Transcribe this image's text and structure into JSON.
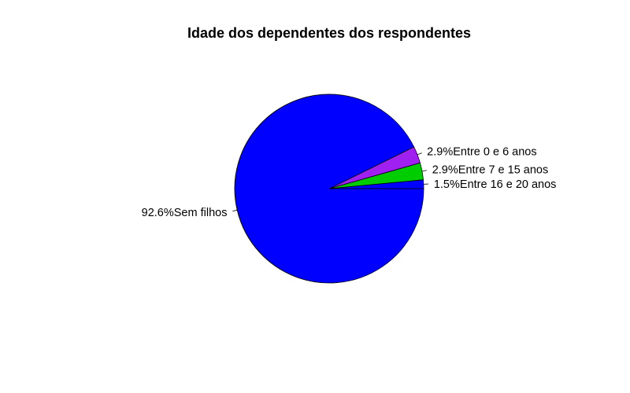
{
  "chart_data": {
    "type": "pie",
    "title": "Idade dos dependentes dos respondentes",
    "start_angle_deg": 0,
    "direction": "counterclockwise",
    "slices": [
      {
        "label": "1.5%Entre 16 e 20 anos",
        "category": "Entre 16 e 20 anos",
        "value": 1.5,
        "color": "#0000FF"
      },
      {
        "label": "2.9%Entre 7 e 15 anos",
        "category": "Entre 7 e 15 anos",
        "value": 2.9,
        "color": "#00CD00"
      },
      {
        "label": "2.9%Entre 0 e 6 anos",
        "category": "Entre 0 e 6 anos",
        "value": 2.9,
        "color": "#A020F0"
      },
      {
        "label": "92.6%Sem filhos",
        "category": "Sem filhos",
        "value": 92.6,
        "color": "#0000FF"
      }
    ]
  }
}
